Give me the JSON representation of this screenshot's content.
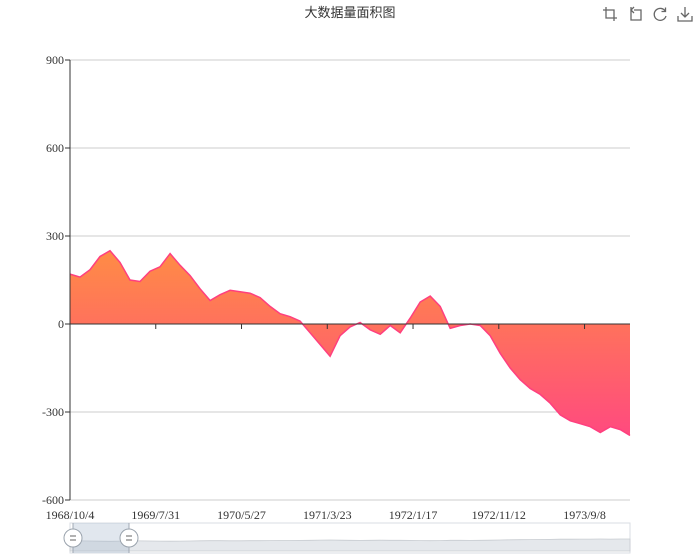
{
  "chart_data": {
    "type": "area",
    "title": "大数据量面积图",
    "xlabel": "",
    "ylabel": "",
    "ylim": [
      -600,
      900
    ],
    "y_ticks": [
      900,
      600,
      300,
      0,
      -300,
      -600
    ],
    "x_range": [
      "1968/10/4",
      "1974/2/14"
    ],
    "x_tick_labels": [
      "1968/10/4",
      "1969/7/31",
      "1970/5/27",
      "1971/3/23",
      "1972/1/17",
      "1972/11/12",
      "1973/9/8"
    ],
    "grid": true,
    "gradient_colors": [
      "#ff8c45",
      "#ff4a7f"
    ],
    "line_color": "#ff3f7f",
    "series": [
      {
        "x": [
          "1968/10/4",
          "1968/11/8",
          "1968/12/13",
          "1969/1/17",
          "1969/2/21",
          "1969/3/28",
          "1969/5/2",
          "1969/6/6",
          "1969/7/11",
          "1969/8/15",
          "1969/9/19",
          "1969/10/24",
          "1969/11/28",
          "1970/1/2",
          "1970/2/6",
          "1970/3/13",
          "1970/4/17",
          "1970/5/22",
          "1970/6/26",
          "1970/7/31",
          "1970/9/4",
          "1970/10/9",
          "1970/11/13",
          "1970/12/18",
          "1971/1/22",
          "1971/2/26",
          "1971/4/2",
          "1971/5/7",
          "1971/6/11",
          "1971/7/16",
          "1971/8/20",
          "1971/9/24",
          "1971/10/29",
          "1971/12/3",
          "1972/1/7",
          "1972/2/11",
          "1972/3/17",
          "1972/4/21",
          "1972/5/26",
          "1972/6/30",
          "1972/8/4",
          "1972/9/8",
          "1972/10/13",
          "1972/11/17",
          "1972/12/22",
          "1973/1/26",
          "1973/3/2",
          "1973/4/6",
          "1973/5/11",
          "1973/6/15",
          "1973/7/20",
          "1973/8/24",
          "1973/9/28",
          "1973/11/2",
          "1973/12/7",
          "1974/1/11",
          "1974/2/14"
        ],
        "y": [
          170,
          160,
          185,
          230,
          250,
          210,
          150,
          145,
          180,
          195,
          240,
          200,
          165,
          120,
          80,
          100,
          115,
          110,
          105,
          90,
          60,
          35,
          25,
          10,
          -30,
          -70,
          -110,
          -40,
          -10,
          5,
          -20,
          -35,
          -5,
          -30,
          20,
          75,
          95,
          60,
          -15,
          -5,
          0,
          -5,
          -40,
          -100,
          -150,
          -190,
          -220,
          -240,
          -270,
          -310,
          -330,
          -340,
          -350,
          -370,
          -350,
          -360,
          -380
        ]
      }
    ]
  },
  "data_zoom": {
    "start_fraction": 0.0,
    "end_fraction": 0.1
  },
  "toolbox": [
    {
      "icon": "zoom-select-icon"
    },
    {
      "icon": "zoom-back-icon"
    },
    {
      "icon": "restore-icon"
    },
    {
      "icon": "download-icon"
    }
  ]
}
